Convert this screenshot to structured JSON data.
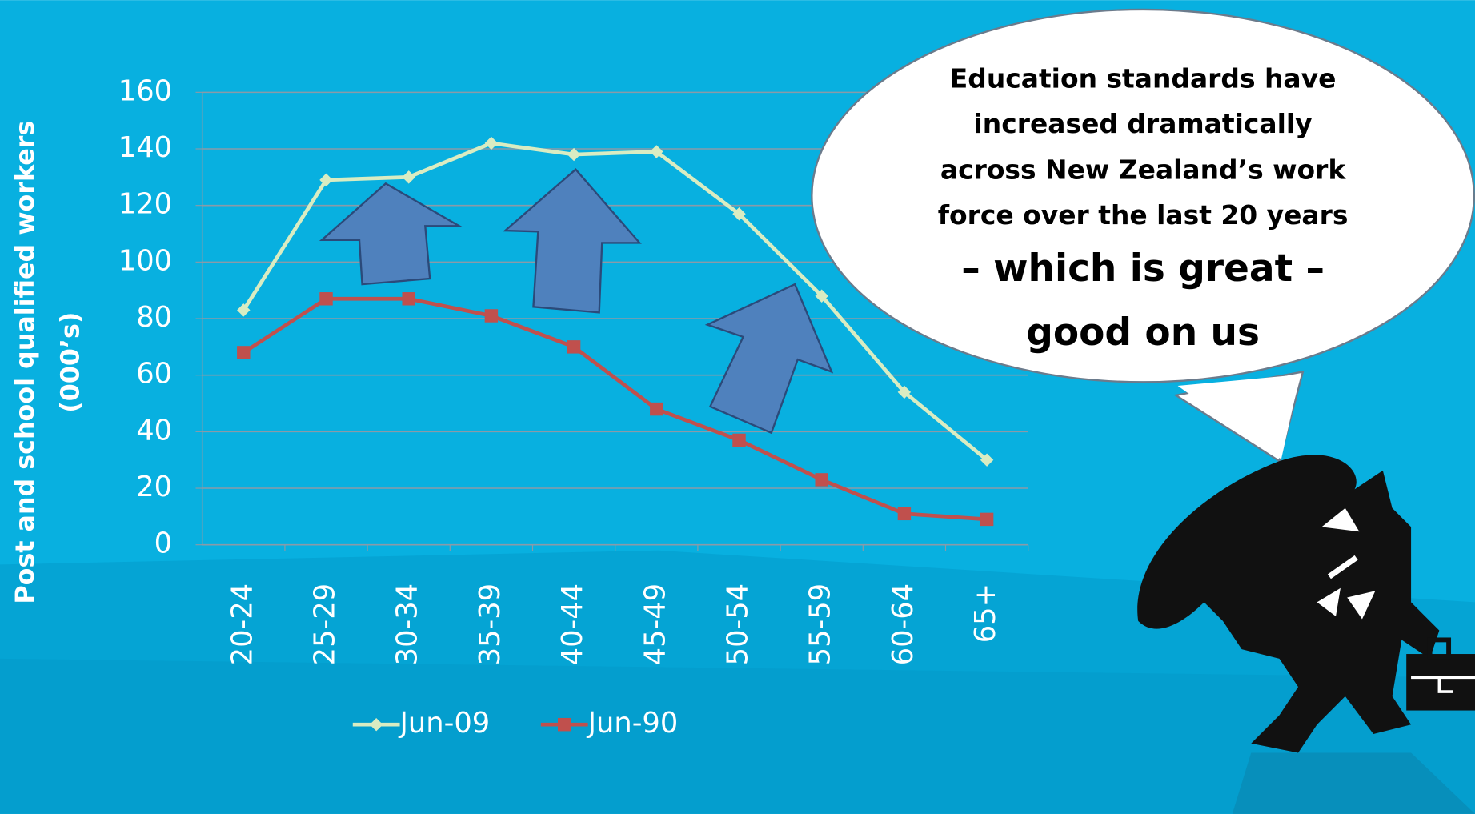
{
  "chart_data": {
    "type": "line",
    "y_label": [
      "Post and school qualified workers",
      "(000’s)"
    ],
    "categories": [
      "20-24",
      "25-29",
      "30-34",
      "35-39",
      "40-44",
      "45-49",
      "50-54",
      "55-59",
      "60-64",
      "65+"
    ],
    "series": [
      {
        "name": "Jun-09",
        "color": "#d9ecc2",
        "marker": "diamond",
        "values": [
          83,
          129,
          130,
          142,
          138,
          139,
          117,
          88,
          54,
          30
        ]
      },
      {
        "name": "Jun-90",
        "color": "#c0504d",
        "marker": "square",
        "values": [
          68,
          87,
          87,
          81,
          70,
          48,
          37,
          23,
          11,
          9
        ]
      }
    ],
    "ylim": [
      0,
      160
    ],
    "yticks": [
      0,
      20,
      40,
      60,
      80,
      100,
      120,
      140,
      160
    ],
    "grid": true,
    "legend": "bottom",
    "callout": [
      "Education standards have",
      "increased dramatically",
      "across New Zealand’s work",
      "force over the last 20 years",
      "– which is great –",
      "good on us"
    ]
  }
}
